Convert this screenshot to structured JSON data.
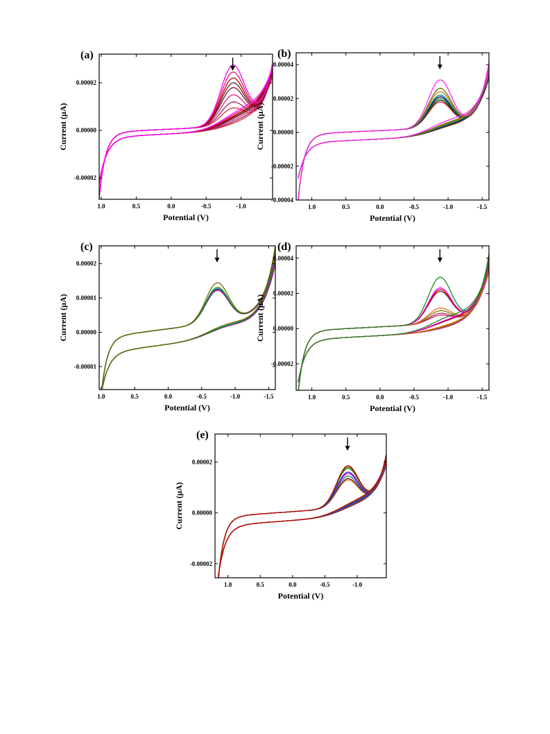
{
  "chart_data": [
    {
      "type": "line",
      "panel": "(a)",
      "xlabel": "Potential (V)",
      "ylabel": "Current (μA)",
      "xlim": [
        1.03,
        -1.45
      ],
      "ylim": [
        -2.9e-05,
        3.2e-05
      ],
      "x_ticks": [
        1.0,
        0.5,
        0.0,
        -0.5,
        -1.0
      ],
      "x_tick_labels": [
        "1.0",
        "0.5",
        "0.0",
        "-0.5",
        "-1.0"
      ],
      "y_ticks": [
        2e-05,
        0.0,
        -2e-05
      ],
      "y_tick_labels": [
        "0.00002",
        "0.00000",
        "-0.00002"
      ],
      "arrow_at": -0.88,
      "grid": false,
      "legend": "none",
      "series_colors": [
        "#ff00ff",
        "#e0106a",
        "#c00000",
        "#5a1f1f",
        "#7d1030",
        "#d2227a",
        "#9b1f5a",
        "#e03030"
      ],
      "shape": {
        "x_start": 1.03,
        "x_end": -1.45,
        "start_cathodic": -2.7e-05,
        "start_anodic": -2.1e-05,
        "plateau_upper": 5e-07,
        "plateau_lower": -1.5e-06,
        "plateau_slope": 1.4e-06,
        "peak_x": -0.88,
        "peak_heights": [
          2.5e-05,
          2.2e-05,
          1.95e-05,
          1.75e-05,
          1.55e-05,
          1.25e-05,
          9.5e-06,
          7e-06
        ],
        "end_value": 3.1e-05
      }
    },
    {
      "type": "line",
      "panel": "(b)",
      "xlabel": "Potential (V)",
      "ylabel": "Current (μA)",
      "xlim": [
        1.23,
        -1.6
      ],
      "ylim": [
        -4e-05,
        4.7e-05
      ],
      "x_ticks": [
        1.0,
        0.5,
        0.0,
        -0.5,
        -1.0,
        -1.5
      ],
      "x_tick_labels": [
        "1.0",
        "0.5",
        "0.0",
        "-0.5",
        "-1.0",
        "-1.5"
      ],
      "y_ticks": [
        4e-05,
        2e-05,
        0.0,
        -2e-05,
        -4e-05
      ],
      "y_tick_labels": [
        "0.00004",
        "0.00002",
        "0.00000",
        "-0.00002",
        "-0.00004"
      ],
      "arrow_at": -0.88,
      "grid": false,
      "legend": "none",
      "series_colors": [
        "#ff22ff",
        "#6b6b00",
        "#b07a00",
        "#008080",
        "#000080",
        "#1a8a1a",
        "#222222",
        "#e02020"
      ],
      "shape": {
        "x_start": 1.2,
        "x_end": -1.6,
        "start_cathodic": -3.8e-05,
        "start_anodic": -2.5e-05,
        "plateau_upper": 1e-06,
        "plateau_lower": -4e-06,
        "plateau_slope": 1.8e-06,
        "peak_x": -0.88,
        "peak_heights": [
          2.8e-05,
          2.3e-05,
          2.1e-05,
          1.9e-05,
          1.8e-05,
          1.7e-05,
          1.6e-05,
          1.5e-05
        ],
        "end_value": 4.5e-05
      }
    },
    {
      "type": "line",
      "panel": "(c)",
      "xlabel": "Potential (V)",
      "ylabel": "Current (μA)",
      "xlim": [
        1.03,
        -1.6
      ],
      "ylim": [
        -1.67e-05,
        2.52e-05
      ],
      "x_ticks": [
        1.0,
        0.5,
        0.0,
        -0.5,
        -1.0,
        -1.5
      ],
      "x_tick_labels": [
        "1.0",
        "0.5",
        "0.0",
        "-0.5",
        "-1.0",
        "-1.5"
      ],
      "y_ticks": [
        2e-05,
        1e-05,
        0.0,
        -1e-05
      ],
      "y_tick_labels": [
        "0.00002",
        "0.00001",
        "0.00000",
        "-0.00001"
      ],
      "arrow_at": -0.73,
      "grid": false,
      "legend": "none",
      "series_colors": [
        "#6b6b00",
        "#1a8a1a",
        "#008080",
        "#2020a0",
        "#ff00ff",
        "#e02060",
        "#8a2be2",
        "#b03060"
      ],
      "shape": {
        "x_start": 1.0,
        "x_end": -1.6,
        "start_cathodic": -1.58e-05,
        "start_anodic": -1.55e-05,
        "plateau_upper": 1e-06,
        "plateau_lower": -3.5e-06,
        "plateau_slope": 2.5e-06,
        "peak_x": -0.73,
        "peak_heights": [
          1.15e-05,
          1.02e-05,
          9.8e-06,
          9.7e-06,
          9.6e-06,
          9.5e-06,
          9.4e-06,
          9.3e-06
        ],
        "end_value": 2.5e-05
      }
    },
    {
      "type": "line",
      "panel": "(d)",
      "xlabel": "Potential (V)",
      "ylabel": "Current (μA)",
      "xlim": [
        1.23,
        -1.6
      ],
      "ylim": [
        -3.5e-05,
        4.7e-05
      ],
      "x_ticks": [
        1.0,
        0.5,
        0.0,
        -0.5,
        -1.0,
        -1.5
      ],
      "x_tick_labels": [
        "1.0",
        "0.5",
        "0.0",
        "-0.5",
        "-1.0",
        "-1.5"
      ],
      "y_ticks": [
        4e-05,
        2e-05,
        0.0,
        -2e-05
      ],
      "y_tick_labels": [
        "0.00004",
        "0.00002",
        "0.00000",
        "-0.00002"
      ],
      "arrow_at": -0.88,
      "grid": false,
      "legend": "none",
      "series_colors": [
        "#1a8a1a",
        "#ff00ff",
        "#c00000",
        "#7a1f1f",
        "#e07020",
        "#808000",
        "#b03060",
        "#d02080"
      ],
      "shape": {
        "x_start": 1.2,
        "x_end": -1.6,
        "start_cathodic": -3.4e-05,
        "start_anodic": -2.8e-05,
        "plateau_upper": 1e-06,
        "plateau_lower": -4e-06,
        "plateau_slope": 2e-06,
        "peak_x": -0.88,
        "peak_heights": [
          2.6e-05,
          2e-05,
          1.9e-05,
          1.8e-05,
          8.5e-06,
          7e-06,
          5.5e-06,
          4.5e-06
        ],
        "end_value": 4.6e-05
      }
    },
    {
      "type": "line",
      "panel": "(e)",
      "xlabel": "Potential (V)",
      "ylabel": "Current (μA)",
      "xlim": [
        1.2,
        -1.45
      ],
      "ylim": [
        -2.55e-05,
        3.1e-05
      ],
      "x_ticks": [
        1.0,
        0.5,
        0.0,
        -0.5,
        -1.0
      ],
      "x_tick_labels": [
        "1.0",
        "0.5",
        "0.0",
        "-0.5",
        "-1.0"
      ],
      "y_ticks": [
        2e-05,
        0.0,
        -2e-05
      ],
      "y_tick_labels": [
        "0.00002",
        "0.00000",
        "-0.00002"
      ],
      "arrow_at": -0.85,
      "grid": false,
      "legend": "none",
      "series_colors": [
        "#c00000",
        "#6b6b00",
        "#1a8a1a",
        "#2020c0",
        "#ff00ff",
        "#008080",
        "#7a1f1f",
        "#e07020"
      ],
      "shape": {
        "x_start": 1.15,
        "x_end": -1.45,
        "start_cathodic": -2.45e-05,
        "start_anodic": -2.3e-05,
        "plateau_upper": 5e-07,
        "plateau_lower": -3e-06,
        "plateau_slope": 1.8e-06,
        "peak_x": -0.85,
        "peak_heights": [
          1.6e-05,
          1.55e-05,
          1.5e-05,
          1.35e-05,
          1.3e-05,
          1.2e-05,
          1.1e-05,
          1.05e-05
        ],
        "end_value": 2.4e-05
      }
    }
  ]
}
